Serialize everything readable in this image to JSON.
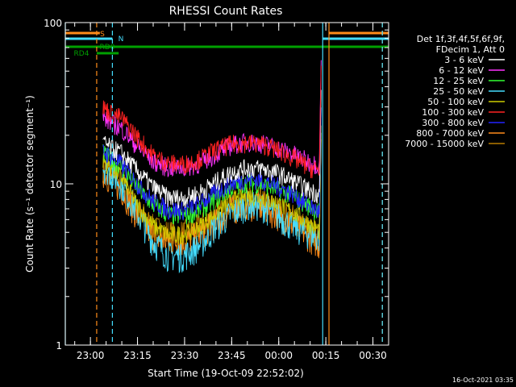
{
  "chart_data": {
    "type": "line",
    "title": "RHESSI Count Rates",
    "xlabel": "Start Time (19-Oct-09 22:52:02)",
    "ylabel": "Count Rate (s⁻¹ detector segment⁻¹)",
    "footer": "16-Oct-2021 03:35",
    "y_scale": "log",
    "ylim": [
      1,
      100
    ],
    "xlim": [
      "22:52",
      "00:35"
    ],
    "y_ticks": [
      "1",
      "10",
      "100"
    ],
    "x_ticks": [
      "23:00",
      "23:15",
      "23:30",
      "23:45",
      "00:00",
      "00:15",
      "00:30"
    ],
    "legend_header": [
      "Det 1f,3f,4f,5f,6f,9f,",
      "FDecim 1, Att 0"
    ],
    "legend_position": "right",
    "flags": [
      {
        "label": "S",
        "color": "#ff8c1a",
        "start": "22:52",
        "end": "23:03",
        "start2": "00:16",
        "end2": "00:35"
      },
      {
        "label": "N",
        "color": "#44ddff",
        "start": "22:52",
        "end": "23:07",
        "start2": "00:14",
        "end2": "00:35"
      },
      {
        "label": "RD0",
        "color": "#00a000",
        "start": "22:52",
        "end": "00:35"
      },
      {
        "label": "RD4",
        "color": "#00a000",
        "start": "23:02",
        "end": "23:09"
      }
    ],
    "vlines": [
      {
        "t": "22:52",
        "color": "#44ddff",
        "style": "solid"
      },
      {
        "t": "23:02",
        "color": "#ff8c1a",
        "style": "dashed"
      },
      {
        "t": "23:07",
        "color": "#44ddff",
        "style": "dashed"
      },
      {
        "t": "00:14",
        "color": "#44ddff",
        "style": "solid"
      },
      {
        "t": "00:16",
        "color": "#ff8c1a",
        "style": "solid"
      },
      {
        "t": "00:33",
        "color": "#ff8c1a",
        "style": "dashed"
      },
      {
        "t": "00:33",
        "color": "#44ddff",
        "style": "dashed"
      }
    ],
    "x": [
      "23:04",
      "23:06",
      "23:10",
      "23:15",
      "23:20",
      "23:25",
      "23:30",
      "23:35",
      "23:40",
      "23:45",
      "23:50",
      "23:55",
      "00:00",
      "00:05",
      "00:10",
      "00:12",
      "00:13"
    ],
    "series": [
      {
        "name": "3 - 6 keV",
        "color": "#ffffff",
        "values": [
          18,
          17,
          15.5,
          12,
          9.5,
          8.2,
          8.2,
          8.9,
          10.3,
          11.8,
          12.6,
          12.4,
          11.6,
          10.3,
          9.1,
          8.8,
          8.5
        ]
      },
      {
        "name": "6 - 12 keV",
        "color": "#ff33ff",
        "values": [
          26,
          24.5,
          22,
          17,
          13.8,
          12.6,
          12.6,
          13.4,
          15.4,
          17.4,
          18.2,
          17.8,
          16.6,
          15.2,
          13.6,
          13.3,
          13
        ]
      },
      {
        "name": "12 - 25 keV",
        "color": "#33ff33",
        "values": [
          15.5,
          14.5,
          12.8,
          9.4,
          7.4,
          6.4,
          6.3,
          6.9,
          8.1,
          9.4,
          10.2,
          9.9,
          9.2,
          8.3,
          7.2,
          6.8,
          6.6
        ]
      },
      {
        "name": "25 - 50 keV",
        "color": "#44ddff",
        "values": [
          13,
          12,
          10,
          6.6,
          4.4,
          3.6,
          3.6,
          4.2,
          5.5,
          6.6,
          7.5,
          7.3,
          6.3,
          5.4,
          4.9,
          4.7,
          4.6
        ]
      },
      {
        "name": "50 - 100 keV",
        "color": "#cccc00",
        "values": [
          14,
          13,
          11,
          7.3,
          5.5,
          4.8,
          4.9,
          5.5,
          6.6,
          7.8,
          8.5,
          8.2,
          7.5,
          6.6,
          5.6,
          5.3,
          5.1
        ]
      },
      {
        "name": "100 - 300 keV",
        "color": "#ff2222",
        "values": [
          30,
          28,
          25.5,
          19.5,
          15,
          13.4,
          13.3,
          14.3,
          16.3,
          17.7,
          18,
          17.6,
          16.1,
          14.3,
          12.6,
          12.3,
          12
        ]
      },
      {
        "name": "300 - 800 keV",
        "color": "#2222ff",
        "values": [
          16,
          15,
          13.2,
          10,
          7.8,
          6.9,
          6.9,
          7.6,
          8.9,
          10.1,
          10.7,
          10.5,
          9.6,
          8.6,
          7.2,
          6.9,
          6.6
        ]
      },
      {
        "name": "800 - 7000 keV",
        "color": "#ff8c1a",
        "values": [
          12,
          11,
          9.3,
          6.3,
          4.8,
          4.4,
          4.4,
          4.9,
          5.8,
          7.0,
          7.5,
          7.2,
          6.4,
          5.6,
          4.7,
          4.4,
          4.2
        ]
      },
      {
        "name": "7000 - 15000 keV",
        "color": "#b87a00",
        "values": [
          13,
          12,
          10.2,
          7.0,
          5.3,
          4.9,
          4.9,
          5.4,
          6.4,
          7.5,
          8.0,
          7.7,
          6.9,
          6.1,
          5.1,
          4.8,
          4.6
        ]
      }
    ]
  }
}
